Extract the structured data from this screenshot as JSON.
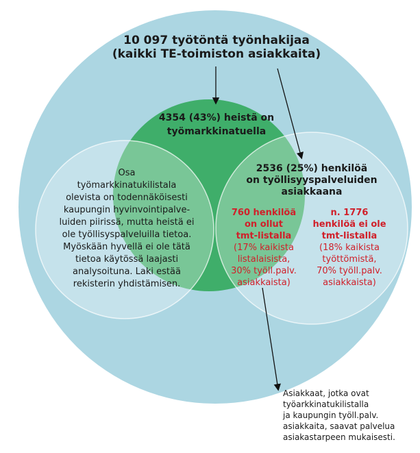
{
  "title": [
    "10 097 työtöntä työnhakijaa",
    "(kaikki TE-toimiston asiakkaita)"
  ],
  "green": [
    "4354 (43%) heistä on",
    "työmarkkinatuella"
  ],
  "left": [
    "Osa",
    "työmarkkinatukilistala",
    "olevista on todennäköisesti",
    "kaupungin hyvinvointipalve-",
    "luiden piirissä, mutta heistä ei",
    "ole työllisyspalveluilla tietoa.",
    "Myöskään hyvellä ei ole tätä",
    "tietoa käytössä laajasti",
    "analysoituna. Laki estää",
    "rekisterin yhdistämisen."
  ],
  "right": [
    "2536 (25%) henkilöä",
    "on työllisyyspalveluiden",
    "asiakkaana"
  ],
  "middle_bold": [
    "760 henkilöä",
    "on ollut",
    "tmt-listalla"
  ],
  "middle": [
    "(17% kaikista",
    "listalaisista,",
    "30% työll.palv.",
    "asiakkaista)"
  ],
  "outer_bold": [
    "n. 1776",
    "henkilöä ei ole",
    "tmt-listalla"
  ],
  "outer": [
    "(18% kaikista",
    "työttömistä,",
    "70% työll.palv.",
    "asiakkaista)"
  ],
  "note": [
    "Asiakkaat, jotka ovat",
    "työarkkinatukilistalla",
    "ja kaupungin työll.palv.",
    "asiakkaita, saavat palvelua",
    "asiakastarpeen mukaisesti."
  ]
}
